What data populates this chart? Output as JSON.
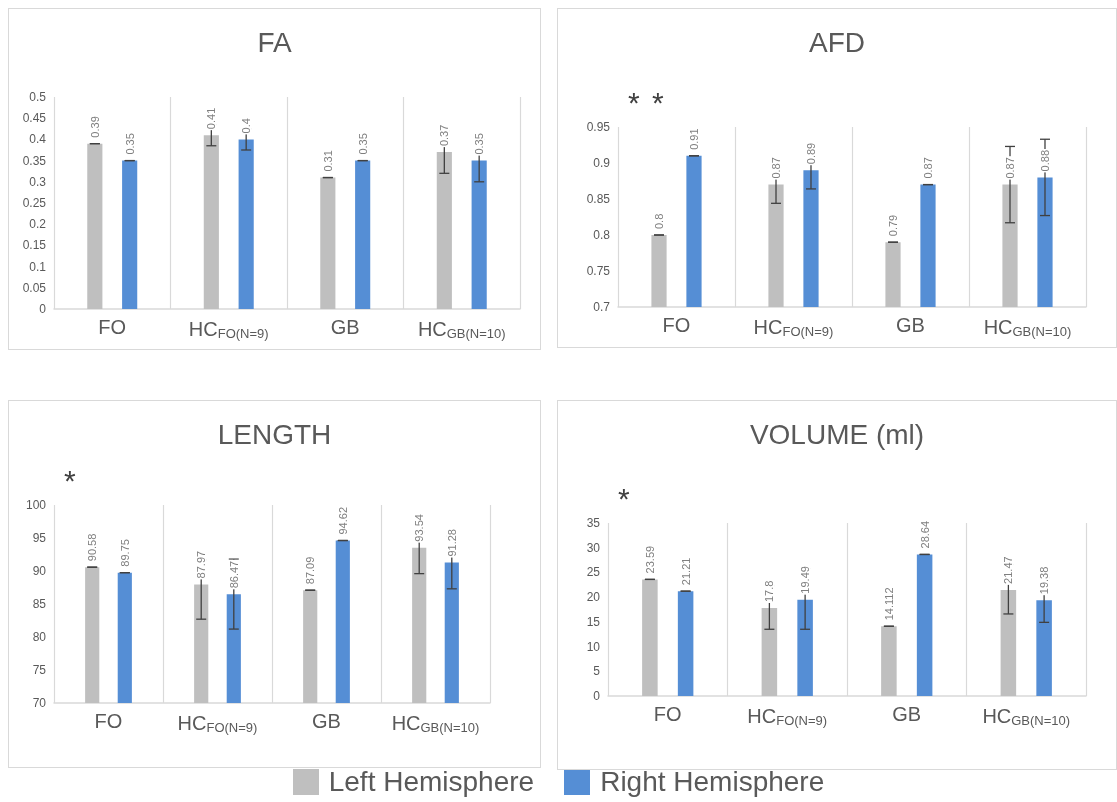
{
  "chart_data": [
    {
      "type": "bar",
      "title": "FA",
      "categories": [
        "FO",
        "HC$_{FO(N=9)}$",
        "GB",
        "HC$_{GB(N=10)}$"
      ],
      "series": [
        {
          "name": "Left Hemisphere",
          "color": "#bfbfbf",
          "values": [
            0.39,
            0.41,
            0.31,
            0.37
          ],
          "errors": [
            0,
            0.025,
            0,
            0.05
          ]
        },
        {
          "name": "Right Hemisphere",
          "color": "#558ed5",
          "values": [
            0.35,
            0.4,
            0.35,
            0.35
          ],
          "errors": [
            0,
            0.025,
            0,
            0.05
          ]
        }
      ],
      "ylim": [
        0,
        0.5
      ],
      "yticks": [
        0,
        0.05,
        0.1,
        0.15,
        0.2,
        0.25,
        0.3,
        0.35,
        0.4,
        0.45,
        0.5
      ],
      "grid": "x",
      "data_labels": true,
      "legend": "bottom"
    },
    {
      "type": "bar",
      "title": "AFD",
      "categories": [
        "FO",
        "HC$_{FO(N=9)}$",
        "GB",
        "HC$_{GB(N=10)}$"
      ],
      "series": [
        {
          "name": "Left Hemisphere",
          "color": "#bfbfbf",
          "values": [
            0.8,
            0.87,
            0.79,
            0.87
          ],
          "errors": [
            0,
            0.026,
            0,
            0.053
          ]
        },
        {
          "name": "Right Hemisphere",
          "color": "#558ed5",
          "values": [
            0.91,
            0.89,
            0.87,
            0.88
          ],
          "errors": [
            0,
            0.026,
            0,
            0.053
          ]
        }
      ],
      "ylim": [
        0.7,
        0.95
      ],
      "yticks": [
        0.7,
        0.75,
        0.8,
        0.85,
        0.9,
        0.95
      ],
      "grid": "x",
      "data_labels": true,
      "legend": "bottom",
      "annotations": [
        "*",
        "*"
      ]
    },
    {
      "type": "bar",
      "title": "LENGTH",
      "categories": [
        "FO",
        "HC$_{FO(N=9)}$",
        "GB",
        "HC$_{GB(N=10)}$"
      ],
      "series": [
        {
          "name": "Left Hemisphere",
          "color": "#bfbfbf",
          "values": [
            90.58,
            87.97,
            87.09,
            93.54
          ],
          "errors": [
            0,
            [
              82.7,
              91.7
            ],
            0,
            [
              89.6,
              95.9
            ]
          ]
        },
        {
          "name": "Right Hemisphere",
          "color": "#558ed5",
          "values": [
            89.75,
            86.47,
            94.62,
            91.28
          ],
          "errors": [
            0,
            [
              81.2,
              91.8
            ],
            0,
            [
              87.3,
              95.3
            ]
          ]
        }
      ],
      "ylim": [
        70,
        100
      ],
      "yticks": [
        70,
        75,
        80,
        85,
        90,
        95,
        100
      ],
      "grid": "x",
      "data_labels": true,
      "legend": "bottom",
      "annotations": [
        "*"
      ]
    },
    {
      "type": "bar",
      "title": "VOLUME (ml)",
      "categories": [
        "FO",
        "HC$_{FO(N=9)}$",
        "GB",
        "HC$_{GB(N=10)}$"
      ],
      "series": [
        {
          "name": "Left Hemisphere",
          "color": "#bfbfbf",
          "values": [
            23.59,
            17.8,
            14.112,
            21.47
          ],
          "errors": [
            0,
            [
              13.5,
              22.3
            ],
            0,
            [
              16.6,
              26.6
            ]
          ]
        },
        {
          "name": "Right Hemisphere",
          "color": "#558ed5",
          "values": [
            21.21,
            19.49,
            28.64,
            19.38
          ],
          "errors": [
            0,
            [
              13.5,
              25.8
            ],
            0,
            [
              14.9,
              23.9
            ]
          ]
        }
      ],
      "ylim": [
        0,
        35
      ],
      "yticks": [
        0,
        5,
        10,
        15,
        20,
        25,
        30,
        35
      ],
      "grid": "x",
      "data_labels": true,
      "legend": "bottom",
      "annotations": [
        "*"
      ]
    }
  ]
}
